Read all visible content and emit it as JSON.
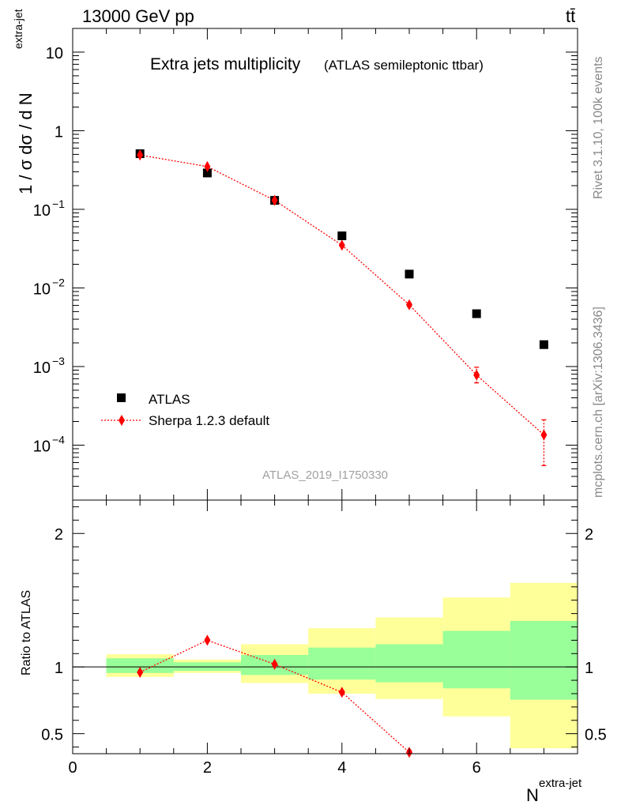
{
  "header": {
    "energy_label": "13000 GeV pp",
    "process_label": "tt̄"
  },
  "side_text": {
    "rivet": "Rivet 3.1.10,  100k events",
    "mcplots": "mcplots.cern.ch [arXiv:1306.3436]"
  },
  "chart_data": [
    {
      "type": "scatter",
      "panel": "main",
      "title": "Extra jets multiplicity",
      "subtitle": "(ATLAS semileptonic ttbar)",
      "ylabel": "1 / σ dσ / d N",
      "ylabel_sup": "extra-jet",
      "y_scale": "log",
      "ylim": [
        2e-05,
        20
      ],
      "xlim": [
        0,
        7.5
      ],
      "y_ticks": [
        {
          "v": 10,
          "label": "10"
        },
        {
          "v": 1,
          "label": "1"
        },
        {
          "v": 0.1,
          "label": "10",
          "exp": "−1"
        },
        {
          "v": 0.01,
          "label": "10",
          "exp": "−2"
        },
        {
          "v": 0.001,
          "label": "10",
          "exp": "−3"
        },
        {
          "v": 0.0001,
          "label": "10",
          "exp": "−4"
        }
      ],
      "watermark": "ATLAS_2019_I1750330",
      "legend_position": "bottom-left",
      "series": [
        {
          "name": "ATLAS",
          "marker": "square",
          "color": "#000000",
          "x": [
            1,
            2,
            3,
            4,
            5,
            6,
            7
          ],
          "y": [
            0.51,
            0.29,
            0.13,
            0.046,
            0.015,
            0.0047,
            0.0019
          ]
        },
        {
          "name": "Sherpa 1.2.3 default",
          "marker": "diamond",
          "line": "dotted",
          "color": "#ff0000",
          "x": [
            1,
            2,
            3,
            4,
            5,
            6,
            7
          ],
          "y": [
            0.49,
            0.35,
            0.13,
            0.035,
            0.0061,
            0.00078,
            0.000135
          ],
          "y_err_low": [
            0.47,
            0.34,
            0.125,
            0.0335,
            0.0058,
            0.00062,
            5.5e-05
          ],
          "y_err_high": [
            0.51,
            0.36,
            0.135,
            0.0365,
            0.0064,
            0.00098,
            0.00021
          ]
        }
      ]
    },
    {
      "type": "scatter",
      "panel": "ratio",
      "ylabel": "Ratio to ATLAS",
      "xlabel": "N",
      "xlabel_sup": "extra-jet",
      "xlim": [
        0,
        7.5
      ],
      "ylim": [
        0.35,
        2.25
      ],
      "x_ticks": [
        0,
        2,
        4,
        6
      ],
      "y_ticks": [
        0.5,
        1,
        2
      ],
      "y_tick_labels": [
        "0.5",
        "1",
        "2"
      ],
      "bands": {
        "x_low": [
          0.5,
          1.5,
          2.5,
          3.5,
          4.5,
          5.5,
          6.5
        ],
        "x_high": [
          1.5,
          2.5,
          3.5,
          4.5,
          5.5,
          6.5,
          7.5
        ],
        "yellow_low": [
          0.925,
          0.955,
          0.88,
          0.8,
          0.76,
          0.63,
          0.39
        ],
        "yellow_high": [
          1.095,
          1.055,
          1.17,
          1.29,
          1.37,
          1.52,
          1.63
        ],
        "green_low": [
          0.955,
          0.97,
          0.94,
          0.905,
          0.885,
          0.84,
          0.755
        ],
        "green_high": [
          1.065,
          1.035,
          1.09,
          1.145,
          1.17,
          1.27,
          1.345
        ]
      },
      "series": [
        {
          "name": "Sherpa 1.2.3 default",
          "color": "#ff0000",
          "x": [
            1,
            2,
            3,
            4,
            5
          ],
          "y": [
            0.96,
            1.2,
            1.02,
            0.81,
            0.36
          ],
          "y_err_low": [
            0.955,
            1.19,
            1.01,
            0.8,
            0.35
          ],
          "y_err_high": [
            0.965,
            1.21,
            1.03,
            0.82,
            0.375
          ]
        }
      ]
    }
  ]
}
